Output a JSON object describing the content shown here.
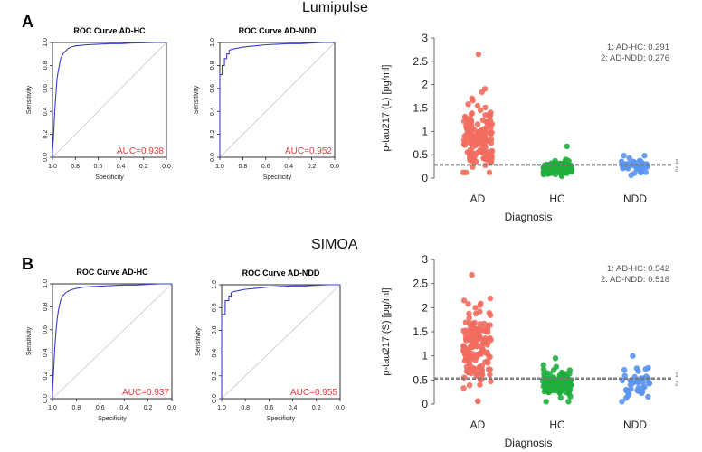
{
  "figure": {
    "section_a_title": "Lumipulse",
    "section_b_title": "SIMOA",
    "panel_a": "A",
    "panel_b": "B"
  },
  "chart_data": [
    {
      "type": "line",
      "id": "roc-a-hc",
      "title": "ROC Curve AD-HC",
      "xlabel": "Specificity",
      "ylabel": "Sensitivity",
      "x_reversed": true,
      "xlim": [
        1.0,
        0.0
      ],
      "ylim": [
        0.0,
        1.0
      ],
      "xticks": [
        "1.0",
        "0.8",
        "0.6",
        "0.4",
        "0.2",
        "0.0"
      ],
      "yticks": [
        "0.0",
        "0.2",
        "0.4",
        "0.6",
        "0.8",
        "1.0"
      ],
      "annotation": "AUC=0.938",
      "colors": {
        "curve": "#3c3cc8",
        "diagonal": "#c8c8c8",
        "annotation": "#e23b3b"
      },
      "series": [
        {
          "x": [
            1.0,
            1.0,
            0.99,
            0.98,
            0.97,
            0.96,
            0.95,
            0.94,
            0.93,
            0.92,
            0.9,
            0.88,
            0.86,
            0.84,
            0.8,
            0.75,
            0.7,
            0.6,
            0.5,
            0.4,
            0.3,
            0.2,
            0.1,
            0.0
          ],
          "y": [
            0.0,
            0.05,
            0.2,
            0.4,
            0.55,
            0.68,
            0.75,
            0.8,
            0.85,
            0.88,
            0.91,
            0.93,
            0.95,
            0.96,
            0.97,
            0.975,
            0.98,
            0.985,
            0.99,
            0.99,
            0.995,
            0.998,
            1.0,
            1.0
          ]
        }
      ]
    },
    {
      "type": "line",
      "id": "roc-a-ndd",
      "title": "ROC Curve AD-NDD",
      "xlabel": "Specificity",
      "ylabel": "Sensitivity",
      "x_reversed": true,
      "xlim": [
        1.0,
        0.0
      ],
      "ylim": [
        0.0,
        1.0
      ],
      "xticks": [
        "1.0",
        "0.8",
        "0.6",
        "0.4",
        "0.2",
        "0.0"
      ],
      "yticks": [
        "0.0",
        "0.2",
        "0.4",
        "0.6",
        "0.8",
        "1.0"
      ],
      "annotation": "AUC=0.952",
      "colors": {
        "curve": "#3c3cc8",
        "diagonal": "#c8c8c8",
        "annotation": "#e23b3b"
      },
      "series": [
        {
          "x": [
            1.0,
            1.0,
            0.98,
            0.98,
            0.96,
            0.96,
            0.94,
            0.94,
            0.92,
            0.92,
            0.9,
            0.85,
            0.8,
            0.7,
            0.6,
            0.5,
            0.4,
            0.3,
            0.2,
            0.1,
            0.0
          ],
          "y": [
            0.0,
            0.72,
            0.72,
            0.8,
            0.8,
            0.86,
            0.86,
            0.9,
            0.9,
            0.93,
            0.94,
            0.95,
            0.96,
            0.97,
            0.98,
            0.985,
            0.99,
            0.99,
            0.995,
            1.0,
            1.0
          ]
        }
      ]
    },
    {
      "type": "scatter",
      "id": "strip-a",
      "title": "",
      "xlabel": "Diagnosis",
      "ylabel": "p-tau217 (L) [pg/ml]",
      "categories": [
        "AD",
        "HC",
        "NDD"
      ],
      "ylim": [
        0,
        3
      ],
      "yticks": [
        "0",
        "0.5",
        "1",
        "1.5",
        "2",
        "2.5",
        "3"
      ],
      "legend_text": [
        "1: AD-HC: 0.291",
        "2: AD-NDD: 0.276"
      ],
      "thresholds": [
        {
          "label": "1",
          "value": 0.291
        },
        {
          "label": "2",
          "value": 0.276
        }
      ],
      "colors": {
        "AD": "#f26b5e",
        "HC": "#1fae3c",
        "NDD": "#5b93f0",
        "threshold": "#777777"
      },
      "groups": [
        {
          "name": "AD",
          "count": 150,
          "center": 0.7,
          "spread": 0.45,
          "min": 0.12,
          "max": 2.65
        },
        {
          "name": "HC",
          "count": 110,
          "center": 0.18,
          "spread": 0.09,
          "min": 0.04,
          "max": 0.68
        },
        {
          "name": "NDD",
          "count": 40,
          "center": 0.22,
          "spread": 0.1,
          "min": 0.06,
          "max": 0.48
        }
      ]
    },
    {
      "type": "line",
      "id": "roc-b-hc",
      "title": "ROC Curve AD-HC",
      "xlabel": "Specificity",
      "ylabel": "Sensitivity",
      "x_reversed": true,
      "xlim": [
        1.0,
        0.0
      ],
      "ylim": [
        0.0,
        1.0
      ],
      "xticks": [
        "1.0",
        "0.8",
        "0.6",
        "0.4",
        "0.2",
        "0.0"
      ],
      "yticks": [
        "0.0",
        "0.2",
        "0.4",
        "0.6",
        "0.8",
        "1.0"
      ],
      "annotation": "AUC=0.937",
      "colors": {
        "curve": "#3c3cc8",
        "diagonal": "#c8c8c8",
        "annotation": "#e23b3b"
      },
      "series": [
        {
          "x": [
            1.0,
            1.0,
            0.99,
            0.98,
            0.97,
            0.96,
            0.95,
            0.94,
            0.93,
            0.92,
            0.9,
            0.88,
            0.86,
            0.84,
            0.8,
            0.75,
            0.7,
            0.6,
            0.5,
            0.4,
            0.3,
            0.2,
            0.1,
            0.0
          ],
          "y": [
            0.0,
            0.06,
            0.25,
            0.45,
            0.6,
            0.7,
            0.77,
            0.82,
            0.86,
            0.89,
            0.91,
            0.93,
            0.94,
            0.95,
            0.96,
            0.97,
            0.975,
            0.98,
            0.985,
            0.99,
            0.99,
            0.995,
            1.0,
            1.0
          ]
        }
      ]
    },
    {
      "type": "line",
      "id": "roc-b-ndd",
      "title": "ROC Curve AD-NDD",
      "xlabel": "Specificity",
      "ylabel": "Sensitivity",
      "x_reversed": true,
      "xlim": [
        1.0,
        0.0
      ],
      "ylim": [
        0.0,
        1.0
      ],
      "xticks": [
        "1.0",
        "0.8",
        "0.6",
        "0.4",
        "0.2",
        "0.0"
      ],
      "yticks": [
        "0.0",
        "0.2",
        "0.4",
        "0.6",
        "0.8",
        "1.0"
      ],
      "annotation": "AUC=0.955",
      "colors": {
        "curve": "#3c3cc8",
        "diagonal": "#c8c8c8",
        "annotation": "#e23b3b"
      },
      "series": [
        {
          "x": [
            1.0,
            1.0,
            0.97,
            0.97,
            0.94,
            0.94,
            0.92,
            0.92,
            0.9,
            0.85,
            0.8,
            0.7,
            0.6,
            0.5,
            0.4,
            0.3,
            0.2,
            0.1,
            0.0
          ],
          "y": [
            0.0,
            0.74,
            0.74,
            0.86,
            0.86,
            0.9,
            0.9,
            0.93,
            0.94,
            0.95,
            0.96,
            0.97,
            0.98,
            0.985,
            0.99,
            0.99,
            0.995,
            1.0,
            1.0
          ]
        }
      ]
    },
    {
      "type": "scatter",
      "id": "strip-b",
      "title": "",
      "xlabel": "Diagnosis",
      "ylabel": "p-tau217 (S) [pg/ml]",
      "categories": [
        "AD",
        "HC",
        "NDD"
      ],
      "ylim": [
        0,
        3
      ],
      "yticks": [
        "0",
        "0.5",
        "1",
        "1.5",
        "2",
        "2.5",
        "3"
      ],
      "legend_text": [
        "1: AD-HC: 0.542",
        "2: AD-NDD: 0.518"
      ],
      "thresholds": [
        {
          "label": "1",
          "value": 0.542
        },
        {
          "label": "2",
          "value": 0.518
        }
      ],
      "colors": {
        "AD": "#f26b5e",
        "HC": "#1fae3c",
        "NDD": "#5b93f0",
        "threshold": "#777777"
      },
      "groups": [
        {
          "name": "AD",
          "count": 150,
          "center": 1.0,
          "spread": 0.5,
          "min": 0.06,
          "max": 2.68
        },
        {
          "name": "HC",
          "count": 110,
          "center": 0.35,
          "spread": 0.18,
          "min": 0.05,
          "max": 0.95
        },
        {
          "name": "NDD",
          "count": 40,
          "center": 0.35,
          "spread": 0.2,
          "min": 0.05,
          "max": 1.0
        }
      ]
    }
  ]
}
